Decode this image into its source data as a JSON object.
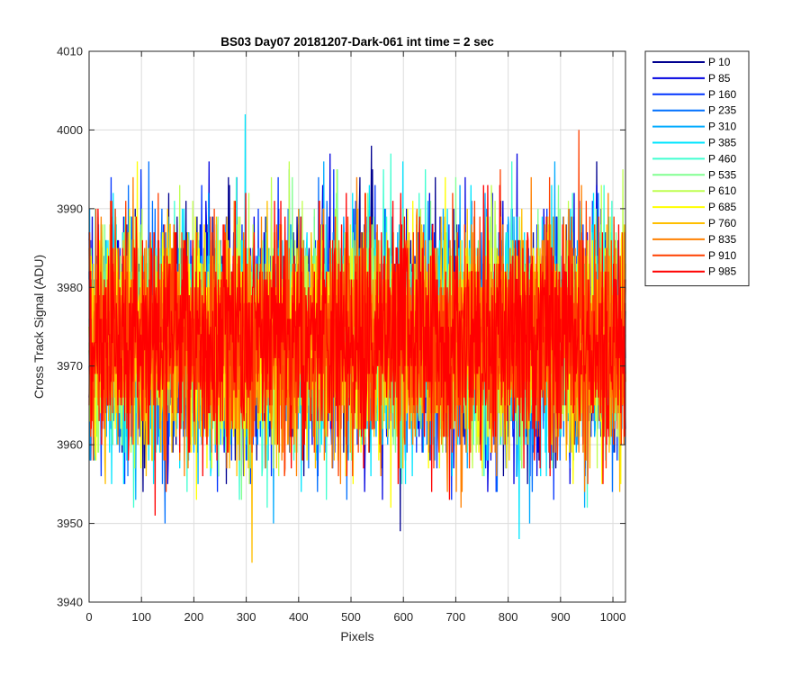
{
  "chart_data": {
    "type": "line",
    "title": "BS03 Day07 20181207-Dark-061 int time = 2 sec",
    "xlabel": "Pixels",
    "ylabel": "Cross Track Signal (ADU)",
    "xlim": [
      0,
      1024
    ],
    "ylim": [
      3940,
      4010
    ],
    "xticks": [
      0,
      100,
      200,
      300,
      400,
      500,
      600,
      700,
      800,
      900,
      1000
    ],
    "yticks": [
      3940,
      3950,
      3960,
      3970,
      3980,
      3990,
      4000,
      4010
    ],
    "grid": true,
    "legend_position": "outside-top-right",
    "noise_profile": {
      "mean": 3973.5,
      "std": 7,
      "min_observed": 3941,
      "max_observed": 4006
    },
    "series": [
      {
        "name": "P 10",
        "color": "#00008f",
        "seed": 11
      },
      {
        "name": "P 85",
        "color": "#0000e0",
        "seed": 23
      },
      {
        "name": "P 160",
        "color": "#0033ff",
        "seed": 37
      },
      {
        "name": "P 235",
        "color": "#0070ff",
        "seed": 41
      },
      {
        "name": "P 310",
        "color": "#00aaff",
        "seed": 53
      },
      {
        "name": "P 385",
        "color": "#00e5ff",
        "seed": 67
      },
      {
        "name": "P 460",
        "color": "#40ffd0",
        "seed": 71
      },
      {
        "name": "P 535",
        "color": "#80ff90",
        "seed": 83
      },
      {
        "name": "P 610",
        "color": "#bfff50",
        "seed": 97
      },
      {
        "name": "P 685",
        "color": "#ffff00",
        "seed": 101
      },
      {
        "name": "P 760",
        "color": "#ffbf00",
        "seed": 113
      },
      {
        "name": "P 835",
        "color": "#ff8000",
        "seed": 127
      },
      {
        "name": "P 910",
        "color": "#ff4000",
        "seed": 131
      },
      {
        "name": "P 985",
        "color": "#ff0000",
        "seed": 149
      }
    ]
  }
}
